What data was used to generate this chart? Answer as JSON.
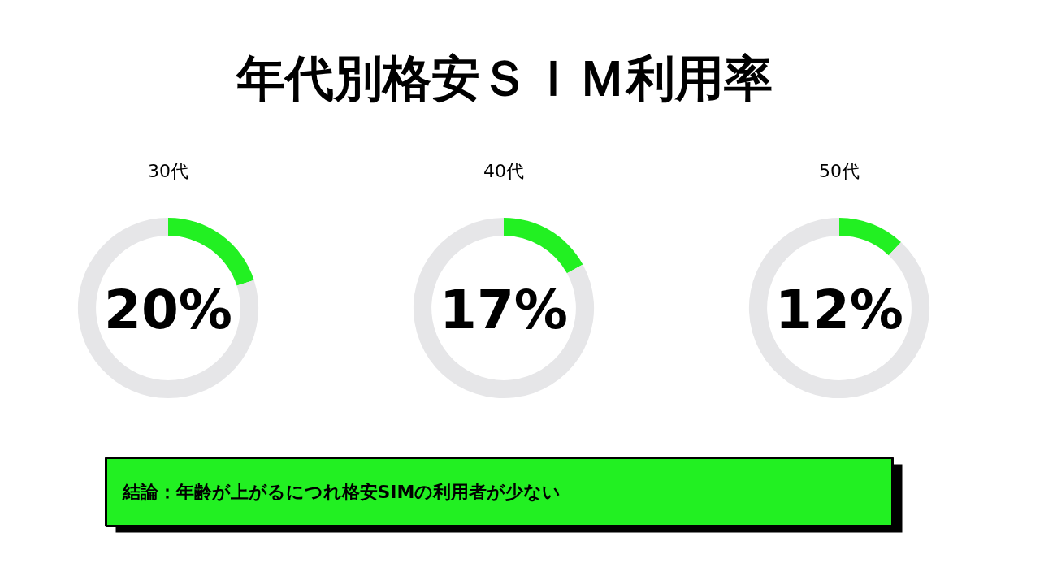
{
  "chart_data": [
    {
      "type": "other",
      "title": "年代別格安ＳＩＭ利用率"
    },
    {
      "type": "donut",
      "title": "30代",
      "categories": [
        null,
        null
      ],
      "values": [
        20,
        80
      ],
      "colors": [
        "#22f022",
        "#e6e6e8"
      ],
      "annotations": [
        "20%"
      ]
    },
    {
      "type": "donut",
      "title": "40代",
      "categories": [
        null,
        null
      ],
      "values": [
        17,
        83
      ],
      "colors": [
        "#22f022",
        "#e6e6e8"
      ],
      "annotations": [
        "17%"
      ]
    },
    {
      "type": "donut",
      "title": "50代",
      "categories": [
        null,
        null
      ],
      "values": [
        12,
        88
      ],
      "colors": [
        "#22f022",
        "#e6e6e8"
      ],
      "annotations": [
        "12%"
      ]
    },
    {
      "type": "other",
      "annotations": [
        "結論：年齢が上がるにつれ格安SIMの利用者が少ない"
      ]
    }
  ]
}
